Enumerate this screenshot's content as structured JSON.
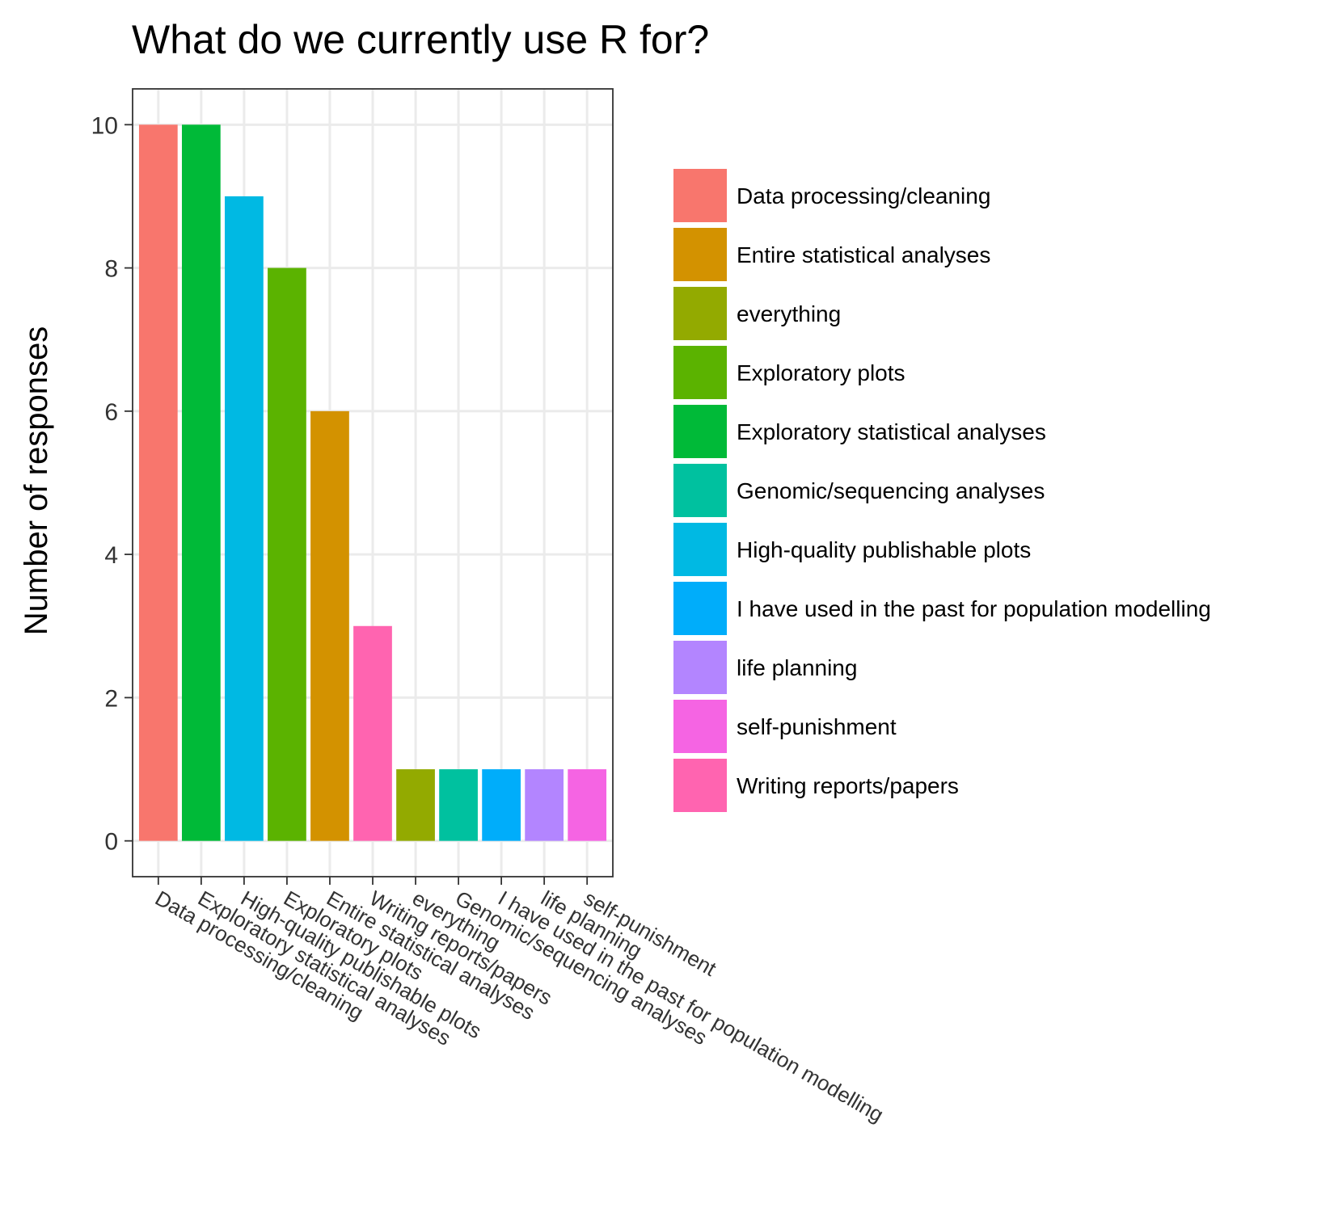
{
  "chart_data": {
    "type": "bar",
    "title": "What do we currently use R for?",
    "xlabel": "",
    "ylabel": "Number of responses",
    "ylim": [
      -0.5,
      10.5
    ],
    "yticks": [
      0,
      2,
      4,
      6,
      8,
      10
    ],
    "grid": true,
    "legend_position": "right",
    "categories": [
      "Data processing/cleaning",
      "Exploratory statistical analyses",
      "High-quality publishable plots",
      "Exploratory plots",
      "Entire statistical analyses",
      "Writing reports/papers",
      "everything",
      "Genomic/sequencing analyses",
      "I have used in the past for population modelling",
      "life planning",
      "self-punishment"
    ],
    "values": [
      10,
      10,
      9,
      8,
      6,
      3,
      1,
      1,
      1,
      1,
      1
    ],
    "legend": [
      {
        "label": "Data processing/cleaning",
        "color": "#F8766D"
      },
      {
        "label": "Entire statistical analyses",
        "color": "#D39200"
      },
      {
        "label": "everything",
        "color": "#93AA00"
      },
      {
        "label": "Exploratory plots",
        "color": "#5BB300"
      },
      {
        "label": "Exploratory statistical analyses",
        "color": "#00BA38"
      },
      {
        "label": "Genomic/sequencing analyses",
        "color": "#00C19F"
      },
      {
        "label": "High-quality publishable plots",
        "color": "#00B9E3"
      },
      {
        "label": "I have used in the past for population modelling",
        "color": "#00ADFA"
      },
      {
        "label": "life planning",
        "color": "#B385FF"
      },
      {
        "label": "self-punishment",
        "color": "#F564E3"
      },
      {
        "label": "Writing reports/papers",
        "color": "#FF64B0"
      }
    ]
  }
}
